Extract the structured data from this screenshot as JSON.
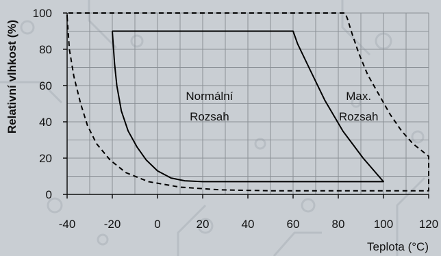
{
  "chart_data": {
    "type": "line",
    "title": "",
    "xlabel": "Teplota (°C)",
    "ylabel": "Relativní vlhkost (%)",
    "xlim": [
      -40,
      120
    ],
    "ylim": [
      0,
      100
    ],
    "x_ticks": [
      -40,
      -20,
      0,
      20,
      40,
      60,
      80,
      100,
      120
    ],
    "y_ticks": [
      0,
      20,
      40,
      60,
      80,
      100
    ],
    "x_tick_labels": [
      "-40",
      "-20",
      "0",
      "20",
      "40",
      "60",
      "80",
      "100",
      "120"
    ],
    "y_tick_labels": [
      "0",
      "20",
      "40",
      "60",
      "80",
      "100"
    ],
    "grid": true,
    "legend": "none",
    "series": [
      {
        "style": "solid",
        "color": "#000000",
        "points": [
          [
            -20,
            90
          ],
          [
            -19,
            72
          ],
          [
            -18,
            60
          ],
          [
            -16,
            46
          ],
          [
            -13,
            35
          ],
          [
            -9,
            26
          ],
          [
            -5,
            19
          ],
          [
            0,
            13
          ],
          [
            6,
            9
          ],
          [
            12,
            7.5
          ],
          [
            20,
            7
          ],
          [
            60,
            7
          ],
          [
            100,
            7
          ],
          [
            91,
            20
          ],
          [
            82,
            35
          ],
          [
            74,
            52
          ],
          [
            67,
            70
          ],
          [
            62,
            83
          ],
          [
            60,
            90
          ],
          [
            -20,
            90
          ]
        ]
      },
      {
        "style": "dashed",
        "color": "#000000",
        "points": [
          [
            -40,
            98
          ],
          [
            -39,
            80
          ],
          [
            -37,
            65
          ],
          [
            -34,
            50
          ],
          [
            -31,
            38
          ],
          [
            -27,
            28
          ],
          [
            -21,
            19
          ],
          [
            -14,
            12
          ],
          [
            -4,
            7
          ],
          [
            10,
            4
          ],
          [
            28,
            2.5
          ],
          [
            50,
            2
          ],
          [
            100,
            2
          ],
          [
            120,
            2
          ],
          [
            120,
            21
          ],
          [
            117,
            24
          ],
          [
            113,
            28
          ],
          [
            108,
            35
          ],
          [
            103,
            44
          ],
          [
            98,
            55
          ],
          [
            93,
            66
          ],
          [
            89,
            78
          ],
          [
            86,
            89
          ],
          [
            84,
            97
          ],
          [
            83,
            100
          ],
          [
            -40,
            100
          ],
          [
            -40,
            98
          ]
        ]
      }
    ],
    "annotations": [
      {
        "lines": [
          "Normální",
          "Rozsah"
        ],
        "x": 23,
        "y": 45
      },
      {
        "lines": [
          "Max.",
          "Rozsah"
        ],
        "x": 89,
        "y": 45
      }
    ]
  }
}
